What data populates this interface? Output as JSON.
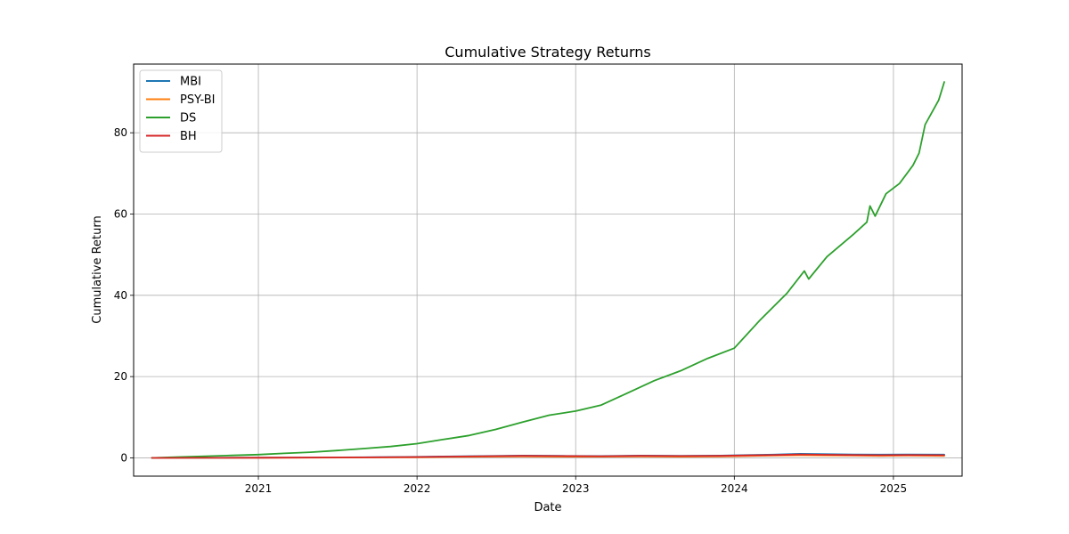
{
  "chart_data": {
    "type": "line",
    "title": "Cumulative Strategy Returns",
    "xlabel": "Date",
    "ylabel": "Cumulative Return",
    "x_axis": "date",
    "xlim": [
      "2020-03-20",
      "2025-06-08"
    ],
    "ylim": [
      -4.5,
      96.9
    ],
    "x_ticks": [
      "2021",
      "2022",
      "2023",
      "2024",
      "2025"
    ],
    "x_tick_dates": [
      "2021-01-01",
      "2022-01-01",
      "2023-01-01",
      "2024-01-01",
      "2025-01-01"
    ],
    "y_ticks": [
      0,
      20,
      40,
      60,
      80
    ],
    "grid": true,
    "legend_position": "top-left",
    "colors": {
      "MBI": "#1f77b4",
      "PSY-BI": "#ff7f0e",
      "DS": "#2ca02c",
      "BH": "#d62728"
    },
    "series": [
      {
        "name": "MBI",
        "x": [
          "2020-05-01",
          "2020-09-01",
          "2021-01-01",
          "2021-05-01",
          "2021-09-01",
          "2022-01-01",
          "2022-03-01",
          "2022-06-01",
          "2022-09-01",
          "2022-12-01",
          "2023-03-01",
          "2023-06-01",
          "2023-09-01",
          "2023-12-01",
          "2024-02-01",
          "2024-04-01",
          "2024-06-01",
          "2024-08-01",
          "2024-10-01",
          "2024-12-01",
          "2025-02-01",
          "2025-04-28"
        ],
        "y": [
          0.0,
          0.02,
          0.05,
          0.1,
          0.15,
          0.25,
          0.35,
          0.45,
          0.55,
          0.5,
          0.45,
          0.55,
          0.5,
          0.55,
          0.7,
          0.8,
          1.0,
          0.9,
          0.85,
          0.8,
          0.85,
          0.8
        ]
      },
      {
        "name": "PSY-BI",
        "x": [
          "2020-05-01",
          "2020-09-01",
          "2021-01-01",
          "2021-05-01",
          "2021-09-01",
          "2022-01-01",
          "2022-03-01",
          "2022-06-01",
          "2022-09-01",
          "2022-12-01",
          "2023-03-01",
          "2023-06-01",
          "2023-09-01",
          "2023-12-01",
          "2024-02-01",
          "2024-04-01",
          "2024-06-01",
          "2024-08-01",
          "2024-10-01",
          "2024-12-01",
          "2025-02-01",
          "2025-04-28"
        ],
        "y": [
          0.0,
          0.01,
          0.03,
          0.06,
          0.1,
          0.15,
          0.2,
          0.3,
          0.35,
          0.3,
          0.3,
          0.35,
          0.3,
          0.35,
          0.45,
          0.55,
          0.65,
          0.6,
          0.55,
          0.5,
          0.55,
          0.5
        ]
      },
      {
        "name": "DS",
        "x": [
          "2020-05-01",
          "2020-07-01",
          "2020-09-01",
          "2020-11-01",
          "2021-01-01",
          "2021-03-01",
          "2021-05-01",
          "2021-07-01",
          "2021-09-01",
          "2021-11-01",
          "2022-01-01",
          "2022-03-01",
          "2022-05-01",
          "2022-07-01",
          "2022-09-01",
          "2022-11-01",
          "2023-01-01",
          "2023-03-01",
          "2023-05-01",
          "2023-07-01",
          "2023-09-01",
          "2023-11-01",
          "2024-01-01",
          "2024-03-01",
          "2024-05-01",
          "2024-06-10",
          "2024-06-20",
          "2024-08-01",
          "2024-10-01",
          "2024-11-01",
          "2024-11-08",
          "2024-11-20",
          "2024-12-15",
          "2025-01-15",
          "2025-02-15",
          "2025-03-01",
          "2025-03-15",
          "2025-04-15",
          "2025-04-28"
        ],
        "y": [
          0.0,
          0.2,
          0.4,
          0.6,
          0.8,
          1.1,
          1.4,
          1.8,
          2.3,
          2.8,
          3.5,
          4.5,
          5.5,
          7.0,
          8.8,
          10.5,
          11.5,
          13.0,
          16.0,
          19.0,
          21.5,
          24.5,
          27.0,
          34.0,
          40.5,
          46.0,
          44.0,
          49.5,
          55.0,
          58.0,
          62.0,
          59.5,
          65.0,
          67.5,
          72.0,
          75.0,
          82.0,
          88.0,
          92.5
        ]
      },
      {
        "name": "BH",
        "x": [
          "2020-05-01",
          "2020-09-01",
          "2021-01-01",
          "2021-05-01",
          "2021-09-01",
          "2022-01-01",
          "2022-03-01",
          "2022-06-01",
          "2022-09-01",
          "2022-12-01",
          "2023-03-01",
          "2023-06-01",
          "2023-09-01",
          "2023-12-01",
          "2024-02-01",
          "2024-04-01",
          "2024-06-01",
          "2024-08-01",
          "2024-10-01",
          "2024-12-01",
          "2025-02-01",
          "2025-04-28"
        ],
        "y": [
          0.0,
          0.02,
          0.04,
          0.08,
          0.12,
          0.2,
          0.3,
          0.4,
          0.5,
          0.45,
          0.4,
          0.5,
          0.45,
          0.5,
          0.6,
          0.7,
          0.85,
          0.75,
          0.7,
          0.65,
          0.7,
          0.65
        ]
      }
    ]
  }
}
